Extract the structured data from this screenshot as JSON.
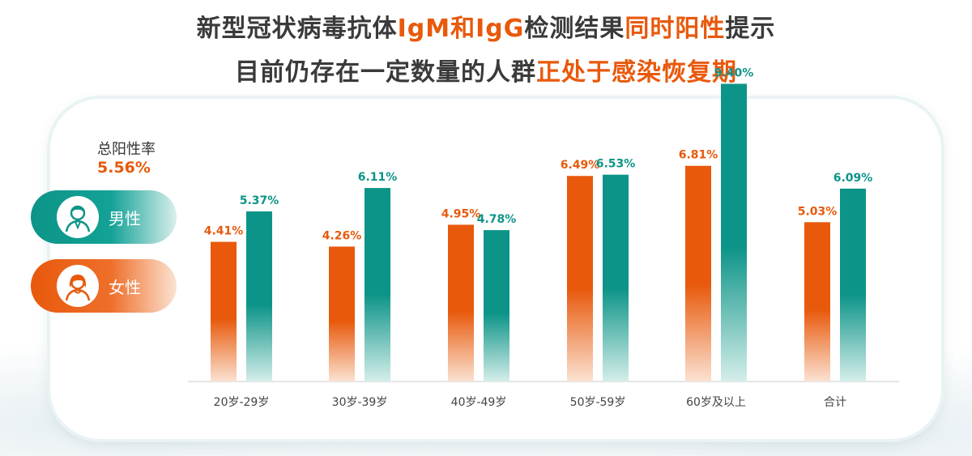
{
  "header": {
    "line1": [
      "新型冠状病毒抗体",
      "IgM和IgG",
      "检测结果",
      "同时阳性",
      "提示"
    ],
    "line2": [
      "目前仍存在一定数量的人群",
      "正处于感染恢复期"
    ]
  },
  "summary": {
    "label": "总阳性率",
    "value": "5.56%"
  },
  "legend": {
    "male_label": "男性",
    "female_label": "女性"
  },
  "colors": {
    "female": "#e8590c",
    "male": "#0d9488",
    "headline_highlight": "#e8590c"
  },
  "icons": {
    "male": "male-avatar-icon",
    "female": "female-avatar-icon"
  },
  "chart_data": {
    "type": "bar",
    "categories": [
      "20岁-29岁",
      "30岁-39岁",
      "40岁-49岁",
      "50岁-59岁",
      "60岁及以上",
      "合计"
    ],
    "series": [
      {
        "name": "女性",
        "values": [
          4.41,
          4.26,
          4.95,
          6.49,
          6.81,
          5.03
        ],
        "labels": [
          "4.41%",
          "4.26%",
          "4.95%",
          "6.49%",
          "6.81%",
          "5.03%"
        ]
      },
      {
        "name": "男性",
        "values": [
          5.37,
          6.11,
          4.78,
          6.53,
          9.4,
          6.09
        ],
        "labels": [
          "5.37%",
          "6.11%",
          "4.78%",
          "6.53%",
          "9.40%",
          "6.09%"
        ]
      }
    ],
    "ylim": [
      0,
      10
    ],
    "grid": false,
    "legend": "left"
  }
}
